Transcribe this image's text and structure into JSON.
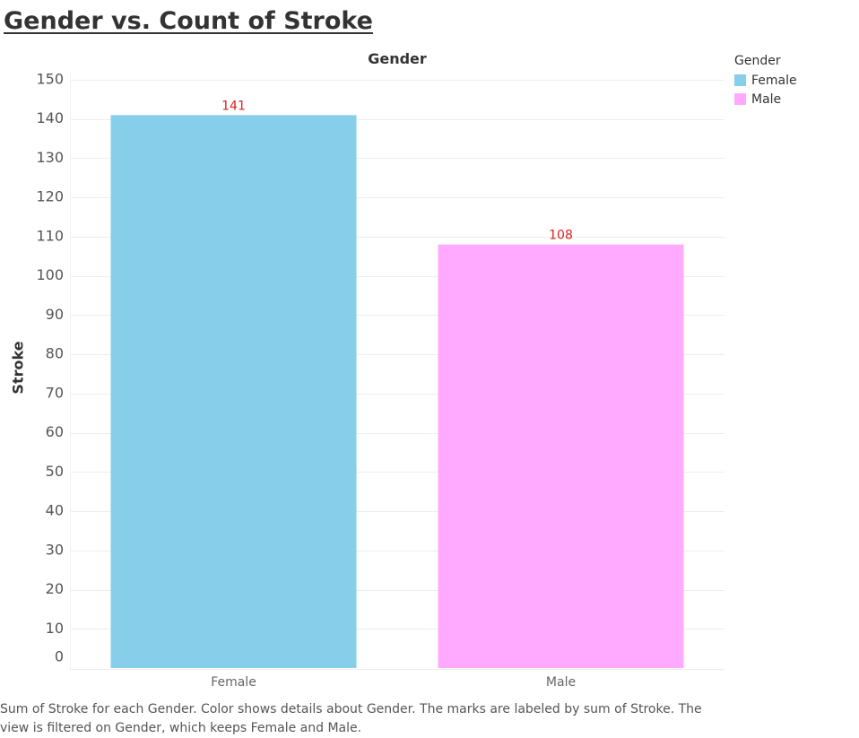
{
  "title": "Gender vs. Count of Stroke",
  "column_header": "Gender",
  "legend": {
    "title": "Gender",
    "items": [
      {
        "label": "Female",
        "color": "#87CEEB"
      },
      {
        "label": "Male",
        "color": "#FFAAFF"
      }
    ]
  },
  "caption": "Sum of Stroke for each Gender.  Color shows details about Gender.  The marks are labeled by sum of Stroke. The view is filtered on Gender, which keeps Female and Male.",
  "chart_data": {
    "type": "bar",
    "title": "Gender vs. Count of Stroke",
    "xlabel": "Gender",
    "ylabel": "Stroke",
    "categories": [
      "Female",
      "Male"
    ],
    "values": [
      141,
      108
    ],
    "colors": [
      "#87CEEB",
      "#FFAAFF"
    ],
    "data_labels": [
      "141",
      "108"
    ],
    "ylim": [
      0,
      150
    ],
    "yticks": [
      0,
      10,
      20,
      30,
      40,
      50,
      60,
      70,
      80,
      90,
      100,
      110,
      120,
      130,
      140,
      150
    ],
    "label_color": "#E02020",
    "grid": true,
    "legend_position": "top-right"
  }
}
